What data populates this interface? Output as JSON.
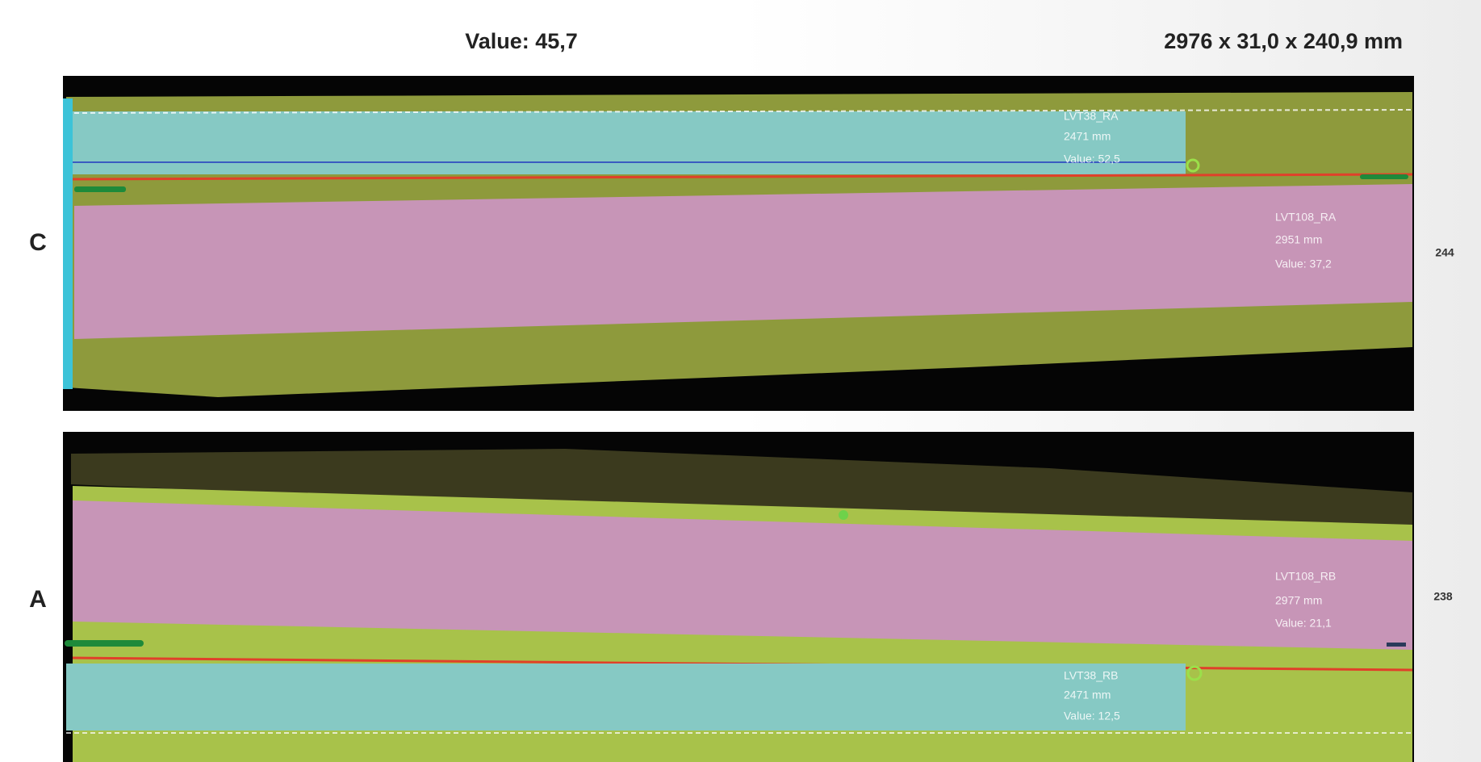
{
  "header": {
    "value": "Value: 45,7",
    "dimensions": "2976 x 31,0 x 240,9 mm"
  },
  "boards": [
    {
      "side": "C",
      "width": "244",
      "zones": [
        {
          "name": "LVT38_RA",
          "length": "2471 mm",
          "value": "Value: 52,5"
        },
        {
          "name": "LVT108_RA",
          "length": "2951 mm",
          "value": "Value: 37,2"
        }
      ]
    },
    {
      "side": "A",
      "width": "238",
      "zones": [
        {
          "name": "LVT108_RB",
          "length": "2977 mm",
          "value": "Value: 21,1"
        },
        {
          "name": "LVT38_RB",
          "length": "2471 mm",
          "value": "Value: 12,5"
        }
      ]
    }
  ]
}
